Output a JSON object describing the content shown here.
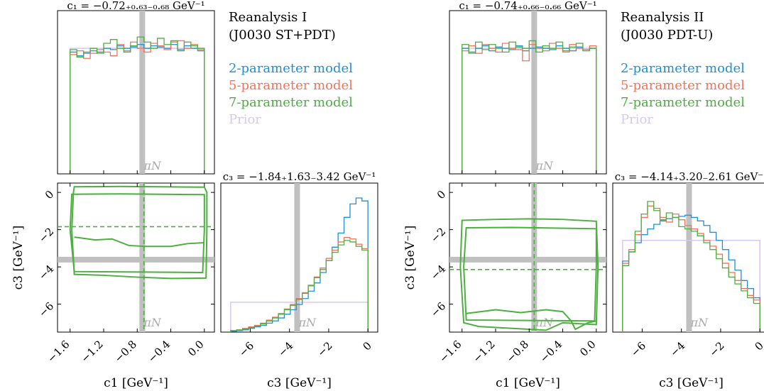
{
  "colors": {
    "model2": "#1f8fd6",
    "model5": "#f2735a",
    "model7": "#4caf3f",
    "prior": "#d8c8f0",
    "reference": "#c0c0c0"
  },
  "reference_label": "πN",
  "legend": [
    {
      "key": "model2",
      "label": "2-parameter model"
    },
    {
      "key": "model5",
      "label": "5-parameter model"
    },
    {
      "key": "model7",
      "label": "7-parameter model"
    },
    {
      "key": "prior",
      "label": "Prior"
    }
  ],
  "chart_data": [
    {
      "type": "corner",
      "title_lines": [
        "Reanalysis I",
        "(J0030 ST+PDT)"
      ],
      "c1_title": "c₁ = −0.72₊₀.₆₃₋₀.₆₈ GeV⁻¹",
      "c1_median": -0.72,
      "c1_plus": 0.63,
      "c1_minus": 0.68,
      "c3_median": -1.84,
      "c3_plus": 1.63,
      "c3_minus": 3.42,
      "xlabel_c1": "c1 [GeV⁻¹]",
      "xlabel_c3": "c3 [GeV⁻¹]",
      "ylabel_c3": "c3 [GeV⁻¹]",
      "c1_range": [
        -1.75,
        0.12
      ],
      "c3_range": [
        -7.5,
        0.5
      ],
      "c1_ticks": [
        "−1.6",
        "−1.2",
        "−0.8",
        "−0.4",
        "0.0"
      ],
      "c1_tick_values": [
        -1.6,
        -1.2,
        -0.8,
        -0.4,
        0.0
      ],
      "c3_ticks": [
        "−6",
        "−4",
        "−2",
        "0"
      ],
      "c3_tick_values": [
        -6,
        -4,
        -2,
        0
      ],
      "reference": {
        "c1": -0.74,
        "c3": -3.61
      },
      "c1_hist": {
        "range": [
          -1.6,
          0.0
        ],
        "ylim": [
          0,
          1.3
        ],
        "model2": [
          0.97,
          0.94,
          0.96,
          0.98,
          0.97,
          1.0,
          0.99,
          1.02,
          1.0,
          1.01,
          1.03,
          1.0,
          1.02,
          1.01,
          1.0,
          1.03,
          0.99,
          1.02,
          1.0,
          0.98
        ],
        "model5": [
          0.95,
          0.98,
          0.92,
          0.96,
          0.99,
          0.97,
          0.94,
          1.03,
          0.98,
          1.05,
          1.0,
          0.97,
          1.04,
          1.02,
          0.99,
          1.05,
          1.06,
          1.0,
          1.03,
          0.99
        ],
        "model7": [
          0.99,
          0.93,
          0.97,
          1.0,
          0.96,
          1.04,
          1.07,
          1.0,
          0.97,
          1.02,
          1.09,
          1.05,
          1.0,
          1.08,
          1.03,
          1.06,
          0.98,
          1.05,
          1.02,
          1.0
        ],
        "prior": 1.0
      },
      "c3_hist": {
        "range": [
          -7.0,
          0.0
        ],
        "ylim": [
          0,
          2.0
        ],
        "model2": [
          0.01,
          0.02,
          0.03,
          0.05,
          0.07,
          0.09,
          0.12,
          0.15,
          0.19,
          0.24,
          0.3,
          0.37,
          0.45,
          0.55,
          0.66,
          0.8,
          0.96,
          1.14,
          1.33,
          1.54,
          1.72,
          1.8,
          1.76
        ],
        "model5": [
          0.02,
          0.03,
          0.05,
          0.07,
          0.09,
          0.12,
          0.16,
          0.2,
          0.25,
          0.31,
          0.37,
          0.45,
          0.53,
          0.63,
          0.74,
          0.86,
          0.99,
          1.1,
          1.21,
          1.27,
          1.25,
          1.18,
          1.12
        ],
        "model7": [
          0.02,
          0.03,
          0.04,
          0.06,
          0.08,
          0.11,
          0.15,
          0.19,
          0.24,
          0.3,
          0.36,
          0.44,
          0.52,
          0.62,
          0.73,
          0.84,
          0.96,
          1.07,
          1.17,
          1.23,
          1.21,
          1.15,
          1.1
        ],
        "prior": 0.4
      },
      "contours": {
        "outer": [
          [
            -1.55,
            0.3
          ],
          [
            -1.0,
            0.32
          ],
          [
            -0.5,
            0.3
          ],
          [
            0.0,
            0.28
          ],
          [
            0.03,
            0.0
          ],
          [
            0.03,
            -2.0
          ],
          [
            0.02,
            -4.6
          ],
          [
            -0.4,
            -4.62
          ],
          [
            -0.8,
            -4.55
          ],
          [
            -1.2,
            -4.45
          ],
          [
            -1.55,
            -4.4
          ],
          [
            -1.58,
            -2.0
          ],
          [
            -1.56,
            0.0
          ]
        ],
        "outer2": [
          [
            -1.58,
            -0.1
          ],
          [
            -1.0,
            -0.08
          ],
          [
            0.0,
            -0.12
          ],
          [
            0.0,
            -2.0
          ],
          [
            -0.02,
            -4.3
          ],
          [
            -1.55,
            -4.25
          ],
          [
            -1.6,
            -2.0
          ]
        ],
        "inner": [
          [
            -1.55,
            -2.4
          ],
          [
            -1.3,
            -2.55
          ],
          [
            -1.1,
            -2.5
          ],
          [
            -0.9,
            -2.85
          ],
          [
            -0.7,
            -2.9
          ],
          [
            -0.4,
            -2.9
          ],
          [
            -0.2,
            -2.75
          ],
          [
            0.0,
            -2.7
          ]
        ]
      }
    },
    {
      "type": "corner",
      "title_lines": [
        "Reanalysis II",
        "(J0030 PDT-U)"
      ],
      "c1_title": "c₁ = −0.74₊₀.₆₆₋₀.₆₆ GeV⁻¹",
      "c1_median": -0.74,
      "c1_plus": 0.66,
      "c1_minus": 0.66,
      "c3_median": -4.14,
      "c3_plus": 3.2,
      "c3_minus": 2.61,
      "xlabel_c1": "c1 [GeV⁻¹]",
      "xlabel_c3": "c3 [GeV⁻¹]",
      "ylabel_c3": "c3 [GeV⁻¹]",
      "c1_range": [
        -1.75,
        0.12
      ],
      "c3_range": [
        -7.5,
        0.5
      ],
      "c1_ticks": [
        "−1.6",
        "−1.2",
        "−0.8",
        "−0.4",
        "0.0"
      ],
      "c1_tick_values": [
        -1.6,
        -1.2,
        -0.8,
        -0.4,
        0.0
      ],
      "c3_ticks": [
        "−6",
        "−4",
        "−2",
        "0"
      ],
      "c3_tick_values": [
        -6,
        -4,
        -2,
        0
      ],
      "reference": {
        "c1": -0.74,
        "c3": -3.61
      },
      "c1_hist": {
        "range": [
          -1.6,
          0.0
        ],
        "ylim": [
          0,
          1.3
        ],
        "model2": [
          1.0,
          0.97,
          1.0,
          1.02,
          0.98,
          1.01,
          1.0,
          0.99,
          1.02,
          0.98,
          1.0,
          1.01,
          1.0,
          0.99,
          1.02,
          1.0,
          0.98,
          1.01,
          0.99,
          1.0
        ],
        "model5": [
          0.98,
          1.02,
          0.96,
          1.03,
          1.0,
          0.97,
          1.04,
          1.0,
          0.99,
          0.9,
          1.03,
          1.0,
          0.98,
          1.04,
          1.0,
          0.97,
          1.03,
          1.0,
          0.99,
          1.02
        ],
        "model7": [
          1.03,
          0.96,
          1.05,
          0.99,
          1.03,
          1.0,
          0.97,
          1.05,
          1.01,
          1.0,
          1.06,
          0.97,
          1.02,
          1.0,
          1.05,
          0.98,
          1.01,
          1.04,
          0.98,
          1.0
        ],
        "prior": 1.0
      },
      "c3_hist": {
        "range": [
          -7.0,
          0.0
        ],
        "ylim": [
          0,
          1.3
        ],
        "model2": [
          0.62,
          0.7,
          0.78,
          0.85,
          0.9,
          0.94,
          0.97,
          0.99,
          1.0,
          1.01,
          1.02,
          1.0,
          0.97,
          0.93,
          0.87,
          0.8,
          0.72,
          0.63,
          0.54,
          0.45,
          0.38,
          0.3
        ],
        "model5": [
          0.6,
          0.72,
          0.85,
          1.0,
          1.1,
          1.08,
          1.0,
          0.96,
          1.03,
          0.98,
          0.93,
          0.9,
          0.86,
          0.8,
          0.75,
          0.68,
          0.6,
          0.52,
          0.45,
          0.38,
          0.32,
          0.28
        ],
        "model7": [
          0.58,
          0.7,
          0.88,
          1.03,
          1.14,
          1.06,
          0.98,
          1.04,
          1.0,
          0.92,
          0.9,
          0.88,
          0.84,
          0.78,
          0.72,
          0.64,
          0.56,
          0.48,
          0.42,
          0.36,
          0.3,
          0.25
        ],
        "prior": 0.8
      },
      "contours": {
        "outer": [
          [
            -1.6,
            -1.5
          ],
          [
            -1.2,
            -1.45
          ],
          [
            -0.8,
            -1.42
          ],
          [
            -0.4,
            -1.45
          ],
          [
            0.0,
            -1.55
          ],
          [
            0.02,
            -4.0
          ],
          [
            0.0,
            -7.1
          ],
          [
            -0.4,
            -7.0
          ],
          [
            -0.6,
            -7.4
          ],
          [
            -1.0,
            -7.3
          ],
          [
            -1.4,
            -7.2
          ],
          [
            -1.58,
            -7.0
          ],
          [
            -1.62,
            -4.0
          ]
        ],
        "outer2": [
          [
            -1.55,
            -1.9
          ],
          [
            -1.0,
            -1.88
          ],
          [
            0.0,
            -1.95
          ],
          [
            0.0,
            -4.0
          ],
          [
            -0.02,
            -6.9
          ],
          [
            -1.55,
            -6.85
          ],
          [
            -1.58,
            -4.0
          ]
        ],
        "inner": [
          [
            -1.55,
            -6.5
          ],
          [
            -1.2,
            -6.3
          ],
          [
            -0.9,
            -6.45
          ],
          [
            -0.6,
            -6.3
          ],
          [
            -0.4,
            -6.4
          ],
          [
            -0.3,
            -6.9
          ],
          [
            -0.25,
            -7.35
          ],
          [
            -0.1,
            -7.0
          ],
          [
            0.0,
            -6.9
          ]
        ]
      }
    }
  ]
}
